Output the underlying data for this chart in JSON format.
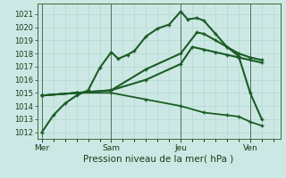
{
  "background_color": "#cde8e4",
  "plot_bg_color": "#cde8e4",
  "grid_color": "#b0d8d0",
  "line_color": "#1a5c25",
  "ylabel_text": "Pression niveau de la mer( hPa )",
  "yticks": [
    1012,
    1013,
    1014,
    1015,
    1016,
    1017,
    1018,
    1019,
    1020,
    1021
  ],
  "ylim": [
    1011.5,
    1021.8
  ],
  "xtick_labels": [
    "Mer",
    "Sam",
    "Jeu",
    "Ven"
  ],
  "xtick_positions": [
    0,
    3,
    6,
    9
  ],
  "xlim": [
    -0.2,
    10.3
  ],
  "series": [
    {
      "x": [
        0,
        0.5,
        1.0,
        1.5,
        2.0,
        2.5,
        3.0,
        3.3,
        3.7,
        4.0,
        4.5,
        5.0,
        5.5,
        6.0,
        6.3,
        6.7,
        7.0,
        7.5,
        8.0,
        8.5,
        9.0,
        9.5
      ],
      "y": [
        1012.0,
        1013.3,
        1014.2,
        1014.8,
        1015.2,
        1016.9,
        1018.1,
        1017.6,
        1017.9,
        1018.2,
        1019.3,
        1019.9,
        1020.2,
        1021.2,
        1020.6,
        1020.7,
        1020.5,
        1019.5,
        1018.5,
        1017.8,
        1015.0,
        1013.0
      ],
      "lw": 1.5
    },
    {
      "x": [
        0,
        1.5,
        3.0,
        4.5,
        6.0,
        6.7,
        7.0,
        7.5,
        8.0,
        8.5,
        9.0,
        9.5
      ],
      "y": [
        1014.8,
        1015.0,
        1015.2,
        1016.8,
        1018.0,
        1019.6,
        1019.5,
        1019.0,
        1018.5,
        1018.0,
        1017.7,
        1017.5
      ],
      "lw": 1.5
    },
    {
      "x": [
        0,
        1.5,
        3.0,
        4.5,
        6.0,
        6.5,
        7.0,
        7.5,
        8.0,
        8.5,
        9.0,
        9.5
      ],
      "y": [
        1014.8,
        1015.0,
        1015.2,
        1016.0,
        1017.2,
        1018.5,
        1018.3,
        1018.1,
        1017.9,
        1017.7,
        1017.5,
        1017.3
      ],
      "lw": 1.5
    },
    {
      "x": [
        0,
        1.5,
        3.0,
        4.5,
        6.0,
        7.0,
        8.0,
        8.5,
        9.0,
        9.5
      ],
      "y": [
        1014.8,
        1015.0,
        1015.0,
        1014.5,
        1014.0,
        1013.5,
        1013.3,
        1013.2,
        1012.8,
        1012.5
      ],
      "lw": 1.3
    }
  ],
  "vline_positions": [
    0,
    3,
    6,
    9
  ],
  "vline_color": "#4a7060",
  "tick_fontsize": 6,
  "label_fontsize": 7.5
}
